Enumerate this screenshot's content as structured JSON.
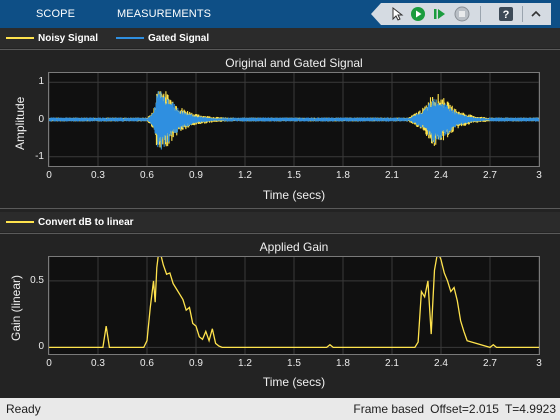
{
  "toolstrip": {
    "tabs": [
      {
        "label": "SCOPE"
      },
      {
        "label": "MEASUREMENTS"
      }
    ],
    "icons": [
      "cursor-icon",
      "run-icon",
      "step-forward-icon",
      "stop-icon",
      "help-icon",
      "collapse-toolstrip-icon"
    ]
  },
  "top": {
    "legend": [
      {
        "label": "Noisy Signal",
        "color": "#ffe34d"
      },
      {
        "label": "Gated Signal",
        "color": "#2f8fe0"
      }
    ],
    "title": "Original and Gated Signal",
    "ylabel": "Amplitude",
    "xlabel": "Time (secs)",
    "yticks": [
      "1",
      "0",
      "-1"
    ],
    "xticks": [
      "0",
      "0.3",
      "0.6",
      "0.9",
      "1.2",
      "1.5",
      "1.8",
      "2.1",
      "2.4",
      "2.7",
      "3"
    ]
  },
  "bottom": {
    "legend": [
      {
        "label": "Convert dB to linear",
        "color": "#ffe34d"
      }
    ],
    "title": "Applied Gain",
    "ylabel": "Gain (linear)",
    "xlabel": "Time (secs)",
    "yticks": [
      "0.5",
      "0"
    ],
    "xticks": [
      "0",
      "0.3",
      "0.6",
      "0.9",
      "1.2",
      "1.5",
      "1.8",
      "2.1",
      "2.4",
      "2.7",
      "3"
    ]
  },
  "status": {
    "left": "Ready",
    "mode": "Frame based",
    "offset": "Offset=2.015",
    "time": "T=4.9923"
  },
  "chart_data": [
    {
      "type": "line",
      "title": "Original and Gated Signal",
      "xlabel": "Time (secs)",
      "ylabel": "Amplitude",
      "xlim": [
        0,
        3
      ],
      "ylim": [
        -1.25,
        1.25
      ],
      "grid": true,
      "legend": "top",
      "series": [
        {
          "name": "Noisy Signal",
          "color": "#ffe34d",
          "envelope": [
            [
              0,
              0.05
            ],
            [
              0.6,
              0.05
            ],
            [
              0.64,
              0.25
            ],
            [
              0.67,
              1.0
            ],
            [
              0.7,
              0.85
            ],
            [
              0.75,
              0.6
            ],
            [
              0.8,
              0.35
            ],
            [
              0.9,
              0.15
            ],
            [
              1.0,
              0.08
            ],
            [
              1.1,
              0.05
            ],
            [
              2.2,
              0.05
            ],
            [
              2.3,
              0.35
            ],
            [
              2.35,
              0.75
            ],
            [
              2.37,
              0.72
            ],
            [
              2.4,
              0.65
            ],
            [
              2.45,
              0.45
            ],
            [
              2.5,
              0.25
            ],
            [
              2.6,
              0.1
            ],
            [
              2.7,
              0.05
            ],
            [
              3.0,
              0.05
            ]
          ]
        },
        {
          "name": "Gated Signal",
          "color": "#2f8fe0",
          "envelope": [
            [
              0,
              0.02
            ],
            [
              0.6,
              0.02
            ],
            [
              0.64,
              0.2
            ],
            [
              0.67,
              0.9
            ],
            [
              0.7,
              0.78
            ],
            [
              0.75,
              0.52
            ],
            [
              0.8,
              0.28
            ],
            [
              0.9,
              0.1
            ],
            [
              1.0,
              0.04
            ],
            [
              1.1,
              0.02
            ],
            [
              2.2,
              0.02
            ],
            [
              2.3,
              0.28
            ],
            [
              2.35,
              0.65
            ],
            [
              2.37,
              0.62
            ],
            [
              2.4,
              0.55
            ],
            [
              2.45,
              0.38
            ],
            [
              2.5,
              0.18
            ],
            [
              2.6,
              0.06
            ],
            [
              2.7,
              0.02
            ],
            [
              3.0,
              0.02
            ]
          ]
        }
      ]
    },
    {
      "type": "line",
      "title": "Applied Gain",
      "xlabel": "Time (secs)",
      "ylabel": "Gain (linear)",
      "xlim": [
        0,
        3
      ],
      "ylim": [
        -0.05,
        0.68
      ],
      "grid": true,
      "legend": "top",
      "series": [
        {
          "name": "Convert dB to linear",
          "color": "#ffe34d",
          "x": [
            0,
            0.33,
            0.35,
            0.37,
            0.58,
            0.6,
            0.62,
            0.64,
            0.65,
            0.66,
            0.67,
            0.68,
            0.7,
            0.72,
            0.74,
            0.76,
            0.78,
            0.8,
            0.82,
            0.84,
            0.86,
            0.88,
            0.9,
            0.92,
            0.94,
            0.96,
            0.98,
            1.0,
            1.02,
            1.04,
            1.06,
            1.7,
            1.72,
            1.74,
            2.24,
            2.26,
            2.28,
            2.3,
            2.32,
            2.34,
            2.36,
            2.38,
            2.4,
            2.42,
            2.44,
            2.46,
            2.48,
            2.5,
            2.52,
            2.54,
            2.56,
            2.7,
            2.72,
            2.74,
            3.0
          ],
          "y": [
            0,
            0,
            0.16,
            0,
            0,
            0.05,
            0.3,
            0.5,
            0.34,
            0.6,
            0.7,
            0.72,
            0.62,
            0.55,
            0.56,
            0.48,
            0.44,
            0.4,
            0.36,
            0.28,
            0.3,
            0.18,
            0.16,
            0.08,
            0.06,
            0.12,
            0.05,
            0.14,
            0.03,
            0.01,
            0,
            0,
            0.02,
            0,
            0,
            0.04,
            0.42,
            0.38,
            0.5,
            0.1,
            0.58,
            0.72,
            0.66,
            0.56,
            0.5,
            0.42,
            0.45,
            0.35,
            0.2,
            0.12,
            0.05,
            0,
            0.02,
            0,
            0
          ]
        }
      ]
    }
  ]
}
